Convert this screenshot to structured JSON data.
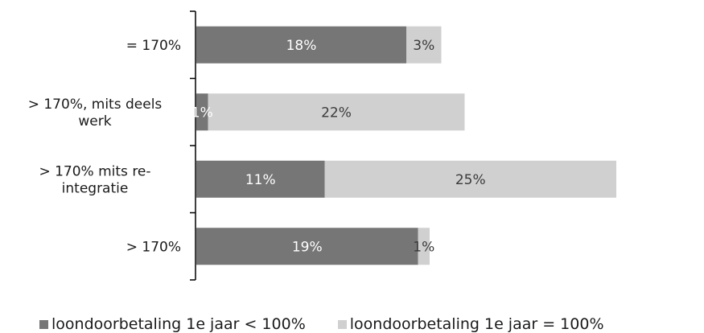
{
  "chart_data": {
    "type": "bar",
    "orientation": "horizontal",
    "stacked": true,
    "categories": [
      [
        "= 170%"
      ],
      [
        "> 170%, mits deels",
        "werk"
      ],
      [
        "> 170% mits re-",
        "integratie"
      ],
      [
        "> 170%"
      ]
    ],
    "series": [
      {
        "name": "loondoorbetaling 1e jaar < 100%",
        "values": [
          18,
          1,
          11,
          19
        ],
        "labels": [
          "18%",
          "1%",
          "11%",
          "19%"
        ],
        "color": "#767676",
        "label_color": "#ffffff"
      },
      {
        "name": "loondoorbetaling 1e jaar = 100%",
        "values": [
          3,
          22,
          25,
          1
        ],
        "labels": [
          "3%",
          "22%",
          "25%",
          "1%"
        ],
        "color": "#d0d0d0",
        "label_color": "#3a3a3a"
      }
    ],
    "legend_position": "bottom",
    "grid": false
  }
}
